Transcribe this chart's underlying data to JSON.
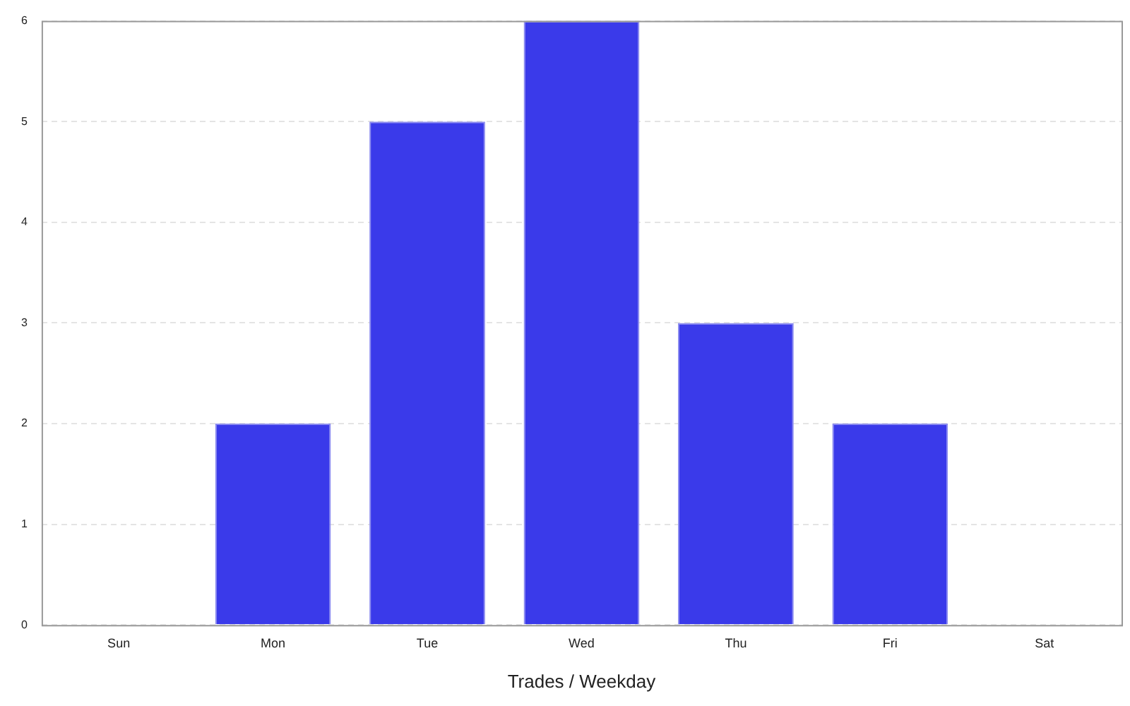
{
  "chart_data": {
    "type": "bar",
    "xlabel": "Trades / Weekday",
    "categories": [
      "Sun",
      "Mon",
      "Tue",
      "Wed",
      "Thu",
      "Fri",
      "Sat"
    ],
    "values": [
      0,
      2,
      5,
      6,
      3,
      2,
      0
    ],
    "color": "#3a3aea",
    "ylim": [
      0,
      6
    ],
    "yticks": [
      0,
      1,
      2,
      3,
      4,
      5,
      6
    ],
    "grid": "y",
    "legend": false
  }
}
